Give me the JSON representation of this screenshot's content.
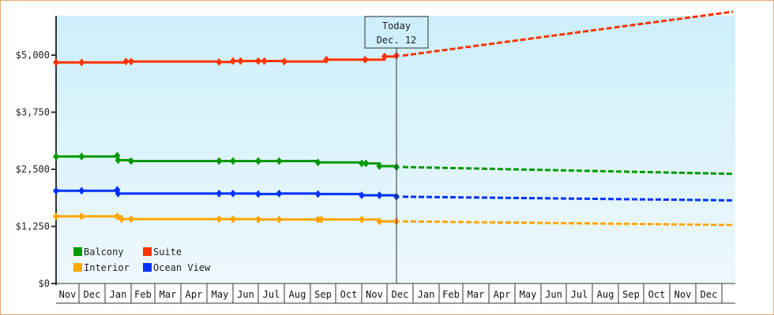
{
  "chart_data": {
    "type": "line",
    "title": "",
    "xlabel": "",
    "ylabel": "",
    "ylim": [
      0,
      6250
    ],
    "y_ticks": [
      "$0",
      "$1,250",
      "$2,500",
      "$3,750",
      "$5,000"
    ],
    "y_tick_values": [
      0,
      1250,
      2500,
      3750,
      5000
    ],
    "x_tick_labels": [
      "Nov",
      "Dec",
      "Jan",
      "Feb",
      "Mar",
      "Apr",
      "May",
      "Jun",
      "Jul",
      "Aug",
      "Sep",
      "Oct",
      "Nov",
      "Dec",
      "Jan",
      "Feb",
      "Mar",
      "Apr",
      "May",
      "Jun",
      "Jul",
      "Aug",
      "Sep",
      "Oct",
      "Nov",
      "Dec"
    ],
    "grid": false,
    "legend_position": "lower-left inside",
    "today_marker": {
      "line1": "Today",
      "line2": "Dec. 12"
    },
    "series": [
      {
        "name": "Balcony",
        "color": "#009900",
        "historical": [
          {
            "x": "Nov 1",
            "y": 2780
          },
          {
            "x": "Dec 4",
            "y": 2780
          },
          {
            "x": "Jan 15",
            "y": 2800
          },
          {
            "x": "Jan 16",
            "y": 2700
          },
          {
            "x": "Feb 1",
            "y": 2680
          },
          {
            "x": "May 15",
            "y": 2680
          },
          {
            "x": "Jun 1",
            "y": 2680
          },
          {
            "x": "Jul 1",
            "y": 2680
          },
          {
            "x": "Jul 25",
            "y": 2680
          },
          {
            "x": "Sep 10",
            "y": 2650
          },
          {
            "x": "Nov 1",
            "y": 2630
          },
          {
            "x": "Nov 6",
            "y": 2630
          },
          {
            "x": "Nov 22",
            "y": 2570
          },
          {
            "x": "Dec 12",
            "y": 2550
          }
        ],
        "forecast_end": {
          "x": "Dec (next)",
          "y": 2400
        }
      },
      {
        "name": "Suite",
        "color": "#ff3300",
        "historical": [
          {
            "x": "Nov 1",
            "y": 4840
          },
          {
            "x": "Dec 4",
            "y": 4840
          },
          {
            "x": "Jan 25",
            "y": 4860
          },
          {
            "x": "Feb 1",
            "y": 4860
          },
          {
            "x": "May 15",
            "y": 4850
          },
          {
            "x": "Jun 1",
            "y": 4870
          },
          {
            "x": "Jun 10",
            "y": 4870
          },
          {
            "x": "Jul 1",
            "y": 4870
          },
          {
            "x": "Jul 8",
            "y": 4870
          },
          {
            "x": "Aug 1",
            "y": 4860
          },
          {
            "x": "Sep 20",
            "y": 4900
          },
          {
            "x": "Nov 5",
            "y": 4900
          },
          {
            "x": "Nov 28",
            "y": 4970
          },
          {
            "x": "Dec 12",
            "y": 4990
          }
        ],
        "forecast_end": {
          "x": "Dec (next)",
          "y": 5950
        }
      },
      {
        "name": "Interior",
        "color": "#ffa500",
        "historical": [
          {
            "x": "Nov 1",
            "y": 1470
          },
          {
            "x": "Dec 4",
            "y": 1470
          },
          {
            "x": "Jan 15",
            "y": 1470
          },
          {
            "x": "Jan 20",
            "y": 1410
          },
          {
            "x": "Feb 1",
            "y": 1410
          },
          {
            "x": "May 15",
            "y": 1410
          },
          {
            "x": "Jun 1",
            "y": 1410
          },
          {
            "x": "Jul 1",
            "y": 1400
          },
          {
            "x": "Jul 25",
            "y": 1400
          },
          {
            "x": "Sep 10",
            "y": 1400
          },
          {
            "x": "Sep 14",
            "y": 1400
          },
          {
            "x": "Nov 1",
            "y": 1400
          },
          {
            "x": "Nov 22",
            "y": 1360
          },
          {
            "x": "Dec 12",
            "y": 1360
          }
        ],
        "forecast_end": {
          "x": "Dec (next)",
          "y": 1280
        }
      },
      {
        "name": "Ocean View",
        "color": "#0033ff",
        "historical": [
          {
            "x": "Nov 1",
            "y": 2030
          },
          {
            "x": "Dec 4",
            "y": 2030
          },
          {
            "x": "Jan 15",
            "y": 2050
          },
          {
            "x": "Jan 16",
            "y": 1970
          },
          {
            "x": "May 15",
            "y": 1970
          },
          {
            "x": "Jun 1",
            "y": 1970
          },
          {
            "x": "Jul 1",
            "y": 1960
          },
          {
            "x": "Jul 25",
            "y": 1970
          },
          {
            "x": "Sep 10",
            "y": 1960
          },
          {
            "x": "Nov 1",
            "y": 1930
          },
          {
            "x": "Nov 22",
            "y": 1930
          },
          {
            "x": "Dec 12",
            "y": 1900
          }
        ],
        "forecast_end": {
          "x": "Dec (next)",
          "y": 1820
        }
      }
    ]
  },
  "legend": {
    "items": [
      {
        "label": "Balcony",
        "color": "#009900"
      },
      {
        "label": "Suite",
        "color": "#ff3300"
      },
      {
        "label": "Interior",
        "color": "#ffa500"
      },
      {
        "label": "Ocean View",
        "color": "#0033ff"
      }
    ]
  },
  "today": {
    "line1": "Today",
    "line2": "Dec. 12"
  }
}
